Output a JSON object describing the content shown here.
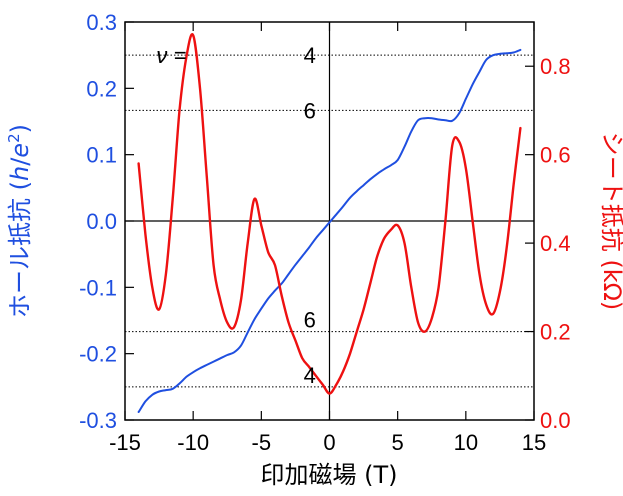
{
  "chart_data": {
    "type": "line",
    "xlabel": "印加磁場 (T)",
    "ylabel_left": "ホール抵抗 (h/e²)",
    "ylabel_left_parts": {
      "prefix": "ホール抵抗 (",
      "h": "h",
      "slash": "/",
      "e": "e",
      "sup": "2",
      "suffix": ")"
    },
    "ylabel_right": "シート抵抗 (kΩ)",
    "xlim": [
      -15,
      15
    ],
    "ylim_left": [
      -0.3,
      0.3
    ],
    "ylim_right": [
      0.0,
      0.9
    ],
    "x_ticks": [
      -15,
      -10,
      -5,
      0,
      5,
      10,
      15
    ],
    "y_left_ticks": [
      -0.3,
      -0.2,
      -0.1,
      0.0,
      0.1,
      0.2,
      0.3
    ],
    "y_right_ticks": [
      0.0,
      0.2,
      0.4,
      0.6,
      0.8
    ],
    "x_tick_labels": [
      "-15",
      "-10",
      "-5",
      "0",
      "5",
      "10",
      "15"
    ],
    "y_left_tick_labels": [
      "-0.3",
      "-0.2",
      "-0.1",
      "0.0",
      "0.1",
      "0.2",
      "0.3"
    ],
    "y_right_tick_labels": [
      "0.0",
      "0.2",
      "0.4",
      "0.6",
      "0.8"
    ],
    "colors": {
      "hall": "#1f4fe0",
      "sheet": "#ee1111",
      "axis": "#000000"
    },
    "reference_lines_left": [
      0.25,
      0.1667,
      -0.1667,
      -0.25
    ],
    "annotations": [
      {
        "text": "ν =",
        "x": -10.5,
        "y": 0.25
      },
      {
        "text": "4",
        "x": -1.0,
        "y": 0.25
      },
      {
        "text": "6",
        "x": -1.0,
        "y": 0.1667
      },
      {
        "text": "6",
        "x": -1.0,
        "y": -0.1667
      },
      {
        "text": "4",
        "x": -1.0,
        "y": -0.25
      }
    ],
    "series": [
      {
        "axis": "left",
        "color": "#1f4fe0",
        "x": [
          -14.0,
          -13.5,
          -13.0,
          -12.5,
          -12.0,
          -11.5,
          -11.0,
          -10.5,
          -10.0,
          -9.5,
          -9.0,
          -8.5,
          -8.0,
          -7.5,
          -7.0,
          -6.5,
          -6.0,
          -5.5,
          -5.0,
          -4.5,
          -4.0,
          -3.5,
          -3.0,
          -2.5,
          -2.0,
          -1.5,
          -1.0,
          -0.5,
          0.0,
          0.5,
          1.0,
          1.5,
          2.0,
          2.5,
          3.0,
          3.5,
          4.0,
          4.5,
          5.0,
          5.5,
          6.0,
          6.5,
          7.0,
          7.5,
          8.0,
          8.5,
          9.0,
          9.5,
          10.0,
          10.5,
          11.0,
          11.5,
          12.0,
          12.5,
          13.0,
          13.5,
          14.0
        ],
        "values": [
          -0.288,
          -0.272,
          -0.262,
          -0.257,
          -0.255,
          -0.253,
          -0.245,
          -0.235,
          -0.228,
          -0.222,
          -0.217,
          -0.212,
          -0.207,
          -0.202,
          -0.198,
          -0.188,
          -0.168,
          -0.148,
          -0.132,
          -0.117,
          -0.105,
          -0.094,
          -0.08,
          -0.066,
          -0.053,
          -0.04,
          -0.026,
          -0.014,
          -0.002,
          0.01,
          0.022,
          0.035,
          0.045,
          0.054,
          0.063,
          0.071,
          0.078,
          0.084,
          0.092,
          0.112,
          0.135,
          0.152,
          0.155,
          0.155,
          0.153,
          0.152,
          0.151,
          0.162,
          0.184,
          0.206,
          0.225,
          0.243,
          0.25,
          0.252,
          0.253,
          0.254,
          0.258
        ]
      },
      {
        "axis": "right",
        "color": "#ee1111",
        "x": [
          -14.0,
          -13.5,
          -13.0,
          -12.5,
          -12.0,
          -11.5,
          -11.0,
          -10.5,
          -10.0,
          -9.5,
          -9.0,
          -8.5,
          -8.0,
          -7.5,
          -7.0,
          -6.5,
          -6.0,
          -5.5,
          -5.0,
          -4.5,
          -4.0,
          -3.5,
          -3.0,
          -2.5,
          -2.0,
          -1.5,
          -1.0,
          -0.5,
          0.0,
          0.5,
          1.0,
          1.5,
          2.0,
          2.5,
          3.0,
          3.5,
          4.0,
          4.5,
          5.0,
          5.5,
          6.0,
          6.5,
          7.0,
          7.5,
          8.0,
          8.5,
          9.0,
          9.5,
          10.0,
          10.5,
          11.0,
          11.5,
          12.0,
          12.5,
          13.0,
          13.5,
          14.0
        ],
        "values": [
          0.58,
          0.42,
          0.3,
          0.25,
          0.33,
          0.5,
          0.7,
          0.82,
          0.87,
          0.75,
          0.55,
          0.35,
          0.27,
          0.22,
          0.21,
          0.27,
          0.4,
          0.5,
          0.44,
          0.38,
          0.35,
          0.28,
          0.22,
          0.18,
          0.14,
          0.12,
          0.1,
          0.08,
          0.06,
          0.08,
          0.11,
          0.15,
          0.2,
          0.25,
          0.31,
          0.37,
          0.41,
          0.43,
          0.44,
          0.4,
          0.3,
          0.22,
          0.2,
          0.23,
          0.3,
          0.45,
          0.62,
          0.63,
          0.57,
          0.45,
          0.33,
          0.26,
          0.24,
          0.29,
          0.39,
          0.53,
          0.66
        ]
      }
    ]
  }
}
